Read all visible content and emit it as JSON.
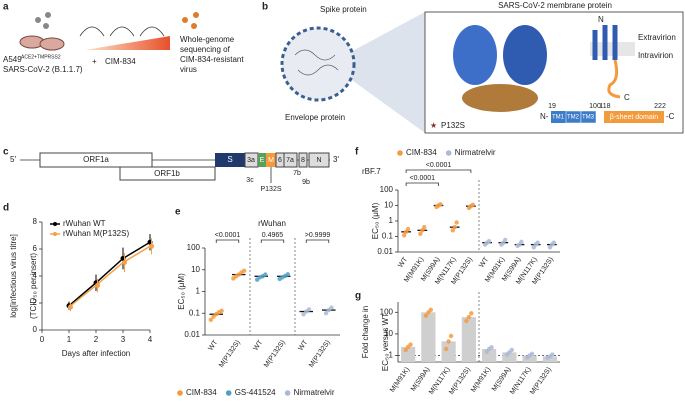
{
  "panel_a": {
    "label": "a",
    "cell_line": "A549",
    "cell_line_sup": "ACE2+TMPRSS2",
    "virus": "SARS-CoV-2 (B.1.1.7)",
    "plus": "+",
    "drug": "CIM-834",
    "sequencing": [
      "Whole-genome",
      "sequencing of",
      "CIM-834-resistant",
      "virus"
    ]
  },
  "panel_b": {
    "label": "b",
    "spike": "Spike protein",
    "envelope": "Envelope protein",
    "title": "SARS-CoV-2 membrane protein",
    "extravirion": "Extravirion",
    "intravirion": "Intravirion",
    "n_term": "N",
    "c_term": "C",
    "mutation": "P132S",
    "domains": {
      "n": "N-",
      "tm1": "TM1",
      "tm2": "TM2",
      "tm3": "TM3",
      "beta": "β-sheet domain",
      "c": "-C"
    },
    "positions": [
      19,
      100,
      118,
      222
    ]
  },
  "panel_c": {
    "label": "c",
    "five": "5′",
    "three": "3′",
    "genes": [
      "ORF1a",
      "ORF1b",
      "S",
      "3a",
      "E",
      "M",
      "6",
      "7a",
      "8",
      "N"
    ],
    "lower": [
      "3c",
      "7b",
      "9b"
    ],
    "mutation": "P132S"
  },
  "chart_data": [
    {
      "type": "line",
      "label": "d",
      "xlabel": "Days after infection",
      "ylabel": [
        "log[infectious virus titre]",
        "(TCID₅₀ per insert)"
      ],
      "x": [
        1,
        2,
        3,
        4
      ],
      "xlim": [
        0,
        4
      ],
      "xticks": [
        0,
        1,
        2,
        3,
        4
      ],
      "ylim": [
        0,
        8
      ],
      "yticks": [
        0,
        2,
        4,
        6,
        8
      ],
      "legend": "upper left",
      "series": [
        {
          "name": "rWuhan WT",
          "color": "#000000",
          "values": [
            1.8,
            3.5,
            5.3,
            6.5
          ],
          "errors": [
            0.3,
            0.6,
            0.8,
            0.6
          ]
        },
        {
          "name": "rWuhan M(P132S)",
          "color": "#f4a14a",
          "values": [
            1.7,
            3.3,
            5.0,
            6.2
          ],
          "errors": [
            0.3,
            0.5,
            0.7,
            0.6
          ]
        }
      ]
    },
    {
      "type": "dot",
      "label": "e",
      "title": "rWuhan",
      "ylabel": "EC₅₀ (μM)",
      "log_scale": true,
      "ylim": [
        0.01,
        100
      ],
      "yticks": [
        0.01,
        0.1,
        1,
        10,
        100
      ],
      "legend": "bottom",
      "categories": [
        "WT",
        "M(P132S)"
      ],
      "p_values": [
        "<0.0001",
        "0.4965",
        ">0.9999"
      ],
      "series": [
        {
          "name": "CIM-834",
          "color": "#f39a3c",
          "values": [
            0.09,
            6
          ],
          "points": [
            [
              0.05,
              0.07,
              0.09,
              0.11,
              0.13
            ],
            [
              4,
              5,
              6,
              7.5,
              9
            ]
          ]
        },
        {
          "name": "GS-441524",
          "color": "#4f9fc4",
          "values": [
            5,
            5
          ],
          "points": [
            [
              3.5,
              4.5,
              5,
              6
            ],
            [
              3.8,
              4.5,
              5.2,
              6.2
            ]
          ]
        },
        {
          "name": "Nirmatrelvir",
          "color": "#a9b9d6",
          "values": [
            0.12,
            0.14
          ],
          "points": [
            [
              0.09,
              0.12,
              0.15
            ],
            [
              0.1,
              0.14,
              0.18
            ]
          ]
        }
      ]
    },
    {
      "type": "dot",
      "label": "f",
      "title": "rBF.7",
      "ylabel": "EC₅₀ (μM)",
      "log_scale": true,
      "ylim": [
        0.01,
        100
      ],
      "yticks": [
        0.01,
        0.1,
        1,
        10,
        100
      ],
      "legend": "top",
      "categories": [
        "WT",
        "M(M91K)",
        "M(S99A)",
        "M(N117K)",
        "M(P132S)"
      ],
      "p_values": [
        "<0.0001",
        "<0.0001"
      ],
      "series": [
        {
          "name": "CIM-834",
          "color": "#f39a3c",
          "values": [
            0.2,
            0.25,
            10,
            0.4,
            9
          ],
          "points": [
            [
              0.12,
              0.2,
              0.3
            ],
            [
              0.15,
              0.25,
              0.4
            ],
            [
              8,
              10,
              12
            ],
            [
              0.25,
              0.4,
              0.8
            ],
            [
              7,
              9,
              11
            ]
          ]
        },
        {
          "name": "Nirmatrelvir",
          "color": "#a9b9d6",
          "values": [
            0.04,
            0.04,
            0.03,
            0.03,
            0.03
          ],
          "points": [
            [
              0.03,
              0.04,
              0.05
            ],
            [
              0.03,
              0.04,
              0.06
            ],
            [
              0.025,
              0.03,
              0.045
            ],
            [
              0.02,
              0.03,
              0.04
            ],
            [
              0.02,
              0.03,
              0.04
            ]
          ]
        }
      ]
    },
    {
      "type": "bar",
      "label": "g",
      "ylabel": [
        "Fold change in",
        "EC₅₀ versus WT"
      ],
      "log_scale": true,
      "ylim": [
        0.5,
        300
      ],
      "yticks": [
        1,
        10,
        100
      ],
      "refline": 1,
      "bar_color": "#cfcfcf",
      "categories": [
        "M(M91K)",
        "M(S99A)",
        "M(N117K)",
        "M(P132S)"
      ],
      "series": [
        {
          "color": "#f39a3c",
          "values": [
            2.5,
            100,
            4.5,
            60
          ],
          "points": [
            [
              1.8,
              2.5,
              3.2
            ],
            [
              70,
              100,
              130
            ],
            [
              2,
              4.5,
              8
            ],
            [
              40,
              60,
              90
            ]
          ]
        },
        {
          "color": "#a9b9d6",
          "values": [
            2,
            1.4,
            1,
            0.9
          ],
          "points": [
            [
              1.5,
              2,
              2.4
            ],
            [
              1.1,
              1.4,
              1.8
            ],
            [
              0.8,
              1,
              1.2
            ],
            [
              0.8,
              0.9,
              1.1
            ]
          ]
        }
      ]
    }
  ]
}
